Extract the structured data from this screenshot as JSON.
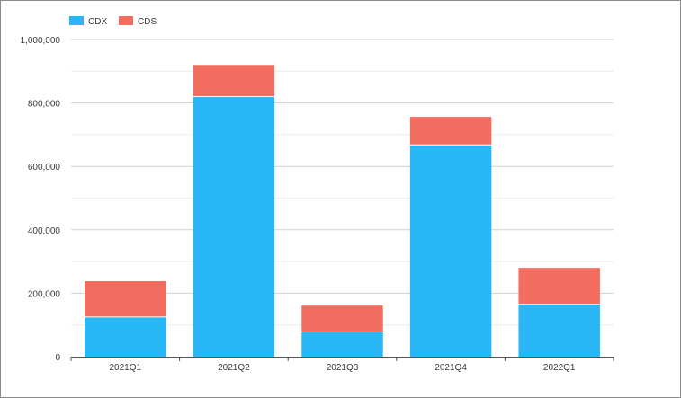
{
  "chart_data": {
    "type": "bar",
    "stacked": true,
    "categories": [
      "2021Q1",
      "2021Q2",
      "2021Q3",
      "2021Q4",
      "2022Q1"
    ],
    "series": [
      {
        "name": "CDX",
        "color": "#29b6f6",
        "values": [
          125000,
          820000,
          78000,
          668000,
          165000
        ]
      },
      {
        "name": "CDS",
        "color": "#f26d5f",
        "values": [
          113000,
          100000,
          83000,
          88000,
          115000
        ]
      }
    ],
    "ylim": [
      0,
      1000000
    ],
    "yticks": [
      0,
      200000,
      400000,
      600000,
      800000,
      1000000
    ],
    "ytick_labels": [
      "0",
      "200,000",
      "400,000",
      "600,000",
      "800,000",
      "1,000,000"
    ],
    "grid": true,
    "legend_position": "top-left",
    "title": "",
    "xlabel": "",
    "ylabel": ""
  }
}
